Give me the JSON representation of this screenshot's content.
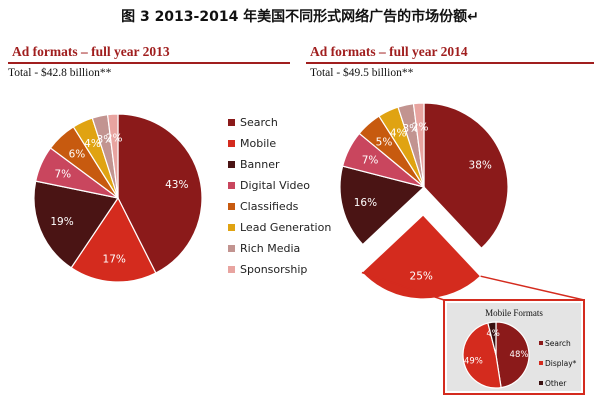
{
  "figure_title": "图 3  2013-2014 年美国不同形式网络广告的市场份额↵",
  "colors": {
    "search": "#8b1a1a",
    "mobile": "#d42b1e",
    "banner": "#4a1414",
    "digital_video": "#c9465e",
    "classifieds": "#c75a0f",
    "lead_generation": "#e0a312",
    "rich_media": "#c29490",
    "sponsorship": "#e8a4a0",
    "accent": "#a01e1e"
  },
  "chart_data": [
    {
      "type": "pie",
      "title": "Ad formats – full year 2013",
      "subtitle": "Total - $42.8 billion**",
      "categories": [
        "Search",
        "Mobile",
        "Banner",
        "Digital Video",
        "Classifieds",
        "Lead Generation",
        "Rich Media",
        "Sponsorship"
      ],
      "values": [
        43,
        17,
        19,
        7,
        6,
        4,
        3,
        2
      ],
      "labels": [
        "43%",
        "17%",
        "19%",
        "7%",
        "6%",
        "4%",
        "3%",
        "2%"
      ],
      "legend_position": "right"
    },
    {
      "type": "pie",
      "title": "Ad formats – full year 2014",
      "subtitle": "Total - $49.5 billion**",
      "categories": [
        "Search",
        "Mobile",
        "Banner",
        "Digital Video",
        "Classifieds",
        "Lead Generation",
        "Rich Media",
        "Sponsorship"
      ],
      "values": [
        38,
        25,
        16,
        7,
        5,
        4,
        3,
        2
      ],
      "labels": [
        "38%",
        "25%",
        "16%",
        "7%",
        "5%",
        "4%",
        "3%",
        "2%"
      ],
      "exploded": "Mobile"
    },
    {
      "type": "pie",
      "title": "Mobile Formats",
      "categories": [
        "Search",
        "Display*",
        "Other"
      ],
      "values": [
        48,
        49,
        4
      ],
      "labels": [
        "48%",
        "49%",
        "4%"
      ],
      "colors": [
        "#8b1a1a",
        "#d42b1e",
        "#3a1010"
      ],
      "legend_position": "right"
    }
  ]
}
